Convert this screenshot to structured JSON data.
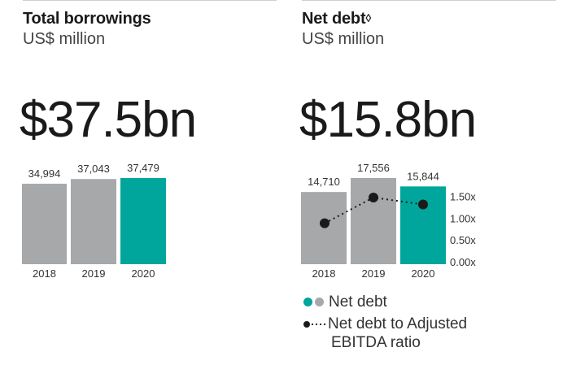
{
  "colors": {
    "grey": "#a6a8aa",
    "teal": "#00a69c",
    "line": "#1a1a1a"
  },
  "left_panel": {
    "title": "Total borrowings",
    "subtitle": "US$ million",
    "headline": "$37.5bn"
  },
  "right_panel": {
    "title": "Net debt",
    "title_symbol": "◊",
    "subtitle": "US$ million",
    "headline": "$15.8bn",
    "legend": {
      "net_debt": "Net debt",
      "ratio_line1": "Net debt to Adjusted",
      "ratio_line2": "EBITDA ratio"
    }
  },
  "chart_data": [
    {
      "type": "bar",
      "title": "Total borrowings",
      "ylabel": "US$ million",
      "categories": [
        "2018",
        "2019",
        "2020"
      ],
      "values": [
        34994,
        37043,
        37479
      ],
      "value_labels": [
        "34,994",
        "37,043",
        "37,479"
      ],
      "highlight": "2020",
      "ylim": [
        0,
        37479
      ]
    },
    {
      "type": "bar",
      "title": "Net debt◊",
      "ylabel": "US$ million",
      "categories": [
        "2018",
        "2019",
        "2020"
      ],
      "values": [
        14710,
        17556,
        15844
      ],
      "value_labels": [
        "14,710",
        "17,556",
        "15,844"
      ],
      "highlight": "2020",
      "ylim": [
        0,
        17556
      ],
      "secondary": {
        "type": "line",
        "name": "Net debt to Adjusted EBITDA ratio",
        "values": [
          0.9,
          1.49,
          1.33
        ],
        "ylim": [
          0,
          1.75
        ],
        "ticks": [
          0.0,
          0.5,
          1.0,
          1.5
        ],
        "tick_labels": [
          "0.00x",
          "0.50x",
          "1.00x",
          "1.50x"
        ]
      }
    }
  ]
}
